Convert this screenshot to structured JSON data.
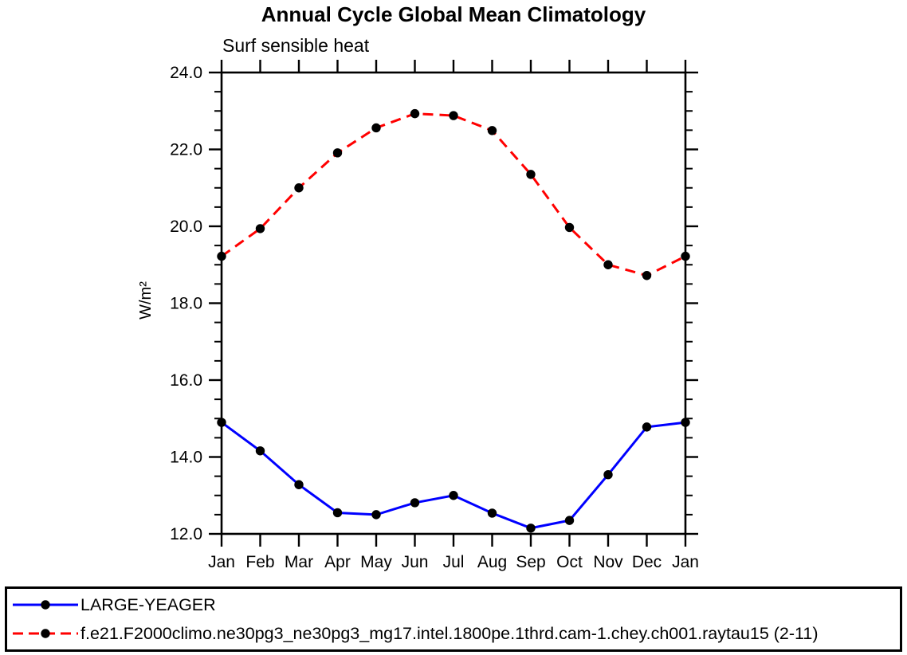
{
  "chart_data": {
    "type": "line",
    "title": "Annual Cycle Global Mean Climatology",
    "subtitle": "Surf sensible heat",
    "ylabel": "W/m²",
    "xlabel": "",
    "x_categories": [
      "Jan",
      "Feb",
      "Mar",
      "Apr",
      "May",
      "Jun",
      "Jul",
      "Aug",
      "Sep",
      "Oct",
      "Nov",
      "Dec",
      "Jan"
    ],
    "ylim": [
      12.0,
      24.0
    ],
    "yticks": [
      12,
      14,
      16,
      18,
      20,
      22,
      24
    ],
    "ytick_labels": [
      "12.0",
      "14.0",
      "16.0",
      "18.0",
      "20.0",
      "22.0",
      "24.0"
    ],
    "y_minor_step": 0.5,
    "grid": false,
    "legend_position": "bottom-box",
    "axis_color": "#000000",
    "series": [
      {
        "name": "LARGE-YEAGER",
        "color": "#0000ff",
        "style": "solid",
        "marker": "circle",
        "marker_color": "#000000",
        "values": [
          14.9,
          14.16,
          13.28,
          12.55,
          12.5,
          12.81,
          13.0,
          12.54,
          12.15,
          12.35,
          13.54,
          14.78,
          14.9
        ]
      },
      {
        "name": "f.e21.F2000climo.ne30pg3_ne30pg3_mg17.intel.1800pe.1thrd.cam-1.chey.ch001.raytau15 (2-11)",
        "color": "#ff0000",
        "style": "dashed",
        "marker": "circle",
        "marker_color": "#000000",
        "values": [
          19.22,
          19.94,
          21.0,
          21.91,
          22.56,
          22.93,
          22.88,
          22.49,
          21.35,
          19.97,
          19.0,
          18.72,
          19.22
        ]
      }
    ]
  }
}
